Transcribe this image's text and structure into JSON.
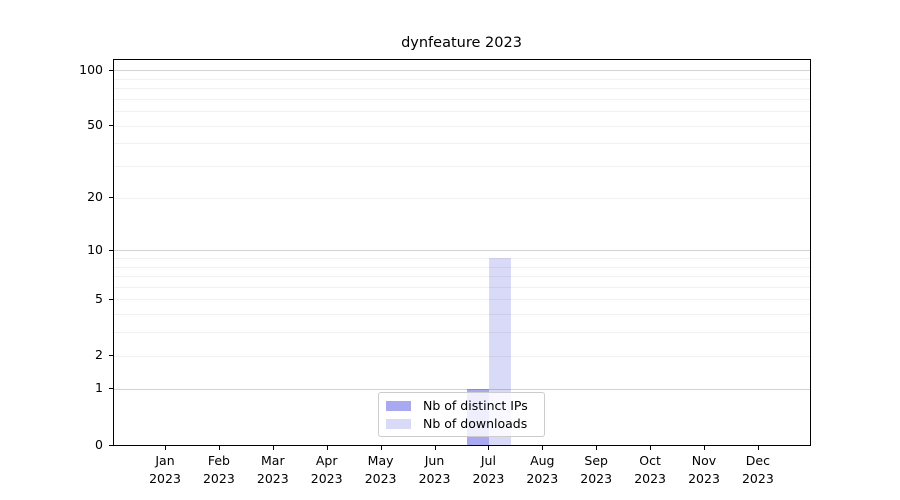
{
  "chart_data": {
    "type": "bar",
    "title": "dynfeature 2023",
    "year_label": "2023",
    "categories": [
      "Jan",
      "Feb",
      "Mar",
      "Apr",
      "May",
      "Jun",
      "Jul",
      "Aug",
      "Sep",
      "Oct",
      "Nov",
      "Dec"
    ],
    "series": [
      {
        "name": "Nb of distinct IPs",
        "color": "#a9a9f1",
        "values": [
          0,
          0,
          0,
          0,
          0,
          0,
          1,
          0,
          0,
          0,
          0,
          0
        ]
      },
      {
        "name": "Nb of downloads",
        "color": "#d9d9f8",
        "values": [
          0,
          0,
          0,
          0,
          0,
          0,
          9,
          0,
          0,
          0,
          0,
          0
        ]
      }
    ],
    "yscale": "log1p",
    "yticks": [
      0,
      1,
      2,
      5,
      10,
      20,
      50,
      100
    ],
    "ylim": [
      0,
      113
    ],
    "xlabel": "",
    "ylabel": "",
    "grid": {
      "minor_values": [
        2,
        3,
        4,
        5,
        6,
        7,
        8,
        9,
        20,
        30,
        40,
        50,
        60,
        70,
        80,
        90
      ],
      "major_values": [
        1,
        10,
        100
      ],
      "minor_color": "#f1f1f1",
      "major_color": "#d3d3d3"
    },
    "legend_position": "lower center",
    "spine_color": "#000000"
  }
}
